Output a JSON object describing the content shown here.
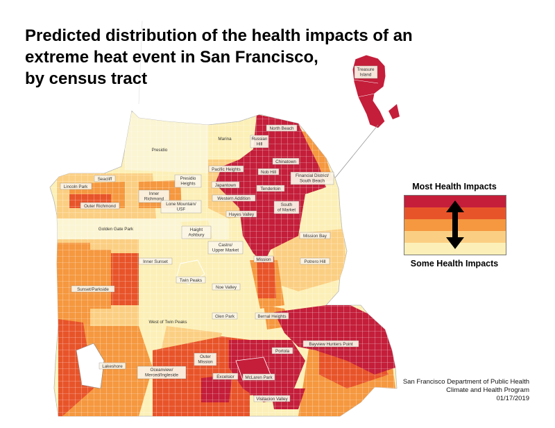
{
  "title": {
    "line1": "Predicted distribution of the health impacts of an",
    "line2": "extreme heat event in San Francisco,",
    "line3": "by census tract"
  },
  "legend": {
    "top_label": "Most Health Impacts",
    "bottom_label": "Some Health Impacts",
    "colors": [
      "#c41e3a",
      "#e8542a",
      "#f5983f",
      "#fbcf83",
      "#fcf0b8"
    ],
    "arrow_icon": "double-headed-vertical-arrow-icon"
  },
  "credits": {
    "line1": "San Francisco Department of Public Health",
    "line2": "Climate and Health Program",
    "date": "01/17/2019"
  },
  "colors": {
    "level5": "#c41e3a",
    "level4": "#e8542a",
    "level3": "#f5983f",
    "level2": "#fbcf83",
    "level1": "#fcf0b8",
    "lowest": "#fbf5d3",
    "boundary": "#ffffff"
  },
  "neighborhoods": {
    "treasure_island": "Treasure Island",
    "north_beach": "North Beach",
    "marina": "Marina",
    "russian_hill": "Russian Hill",
    "chinatown": "Chinatown",
    "presidio": "Presidio",
    "pacific_heights": "Pacific Heights",
    "nob_hill": "Nob Hill",
    "financial_district": "Financial District/ South Beach",
    "seacliff": "Seacliff",
    "lincoln_park": "Lincoln Park",
    "presidio_heights": "Presidio Heights",
    "japantown": "Japantown",
    "tenderloin": "Tenderloin",
    "inner_richmond": "Inner Richmond",
    "outer_richmond": "Outer Richmond",
    "lone_mountain": "Lone Mountain/ USF",
    "western_addition": "Western Addition",
    "south_of_market": "South of Market",
    "hayes_valley": "Hayes Valley",
    "golden_gate_park": "Golden Gate Park",
    "haight_ashbury": "Haight Ashbury",
    "mission_bay": "Mission Bay",
    "castro": "Castro/ Upper Market",
    "inner_sunset": "Inner Sunset",
    "mission": "Mission",
    "potrero_hill": "Potrero Hill",
    "twin_peaks": "Twin Peaks",
    "sunset_parkside": "Sunset/Parkside",
    "noe_valley": "Noe Valley",
    "glen_park": "Glen Park",
    "bernal_heights": "Bernal Heights",
    "west_of_twin_peaks": "West of Twin Peaks",
    "bayview": "Bayview Hunters Point",
    "portola": "Portola",
    "outer_mission": "Outer Mission",
    "lakeshore": "Lakeshore",
    "oceanview": "Oceanview/ Merced/Ingleside",
    "excelsior": "Excelsior",
    "mclaren_park": "McLaren Park",
    "visitacion_valley": "Visitacion Valley"
  }
}
